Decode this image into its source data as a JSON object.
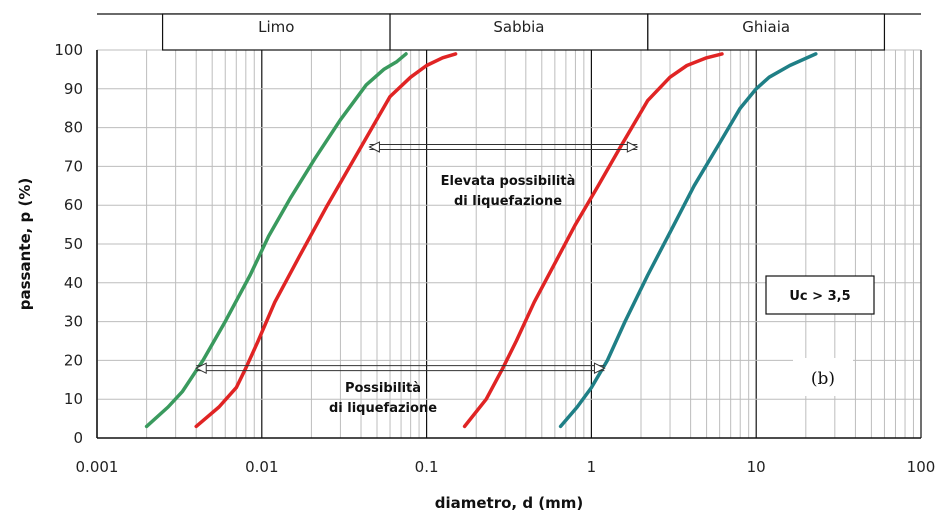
{
  "chart_data": {
    "type": "line",
    "xlabel": "diametro, d (mm)",
    "ylabel": "passante, p (%)",
    "xscale": "log",
    "xlim": [
      0.001,
      100
    ],
    "ylim": [
      0,
      100
    ],
    "xticks": [
      "0.001",
      "0.01",
      "0.1",
      "1",
      "10",
      "100"
    ],
    "yticks": [
      "0",
      "10",
      "20",
      "30",
      "40",
      "50",
      "60",
      "70",
      "80",
      "90",
      "100"
    ],
    "grid": true,
    "soil_bands": [
      {
        "label": "Limo",
        "from": 0.0025,
        "to": 0.06
      },
      {
        "label": "Sabbia",
        "from": 0.06,
        "to": 2.2
      },
      {
        "label": "Ghiaia",
        "from": 2.2,
        "to": 60
      }
    ],
    "series": [
      {
        "color": "#3a9a5e",
        "x": [
          0.002,
          0.0027,
          0.0033,
          0.0044,
          0.006,
          0.0085,
          0.011,
          0.015,
          0.021,
          0.03,
          0.043,
          0.055,
          0.066,
          0.075
        ],
        "y": [
          3,
          8,
          12,
          20,
          30,
          42,
          52,
          62,
          72,
          82,
          91,
          95,
          97,
          99
        ]
      },
      {
        "color": "#e02424",
        "x": [
          0.004,
          0.0055,
          0.007,
          0.008,
          0.0095,
          0.012,
          0.017,
          0.025,
          0.04,
          0.06,
          0.08,
          0.1,
          0.125,
          0.15
        ],
        "y": [
          3,
          8,
          13,
          18,
          25,
          35,
          47,
          60,
          75,
          88,
          93,
          96,
          98,
          99
        ]
      },
      {
        "color": "#e02424",
        "x": [
          0.17,
          0.23,
          0.29,
          0.35,
          0.45,
          0.6,
          0.8,
          1.1,
          1.5,
          2.2,
          3.0,
          3.8,
          5.0,
          6.2
        ],
        "y": [
          3,
          10,
          18,
          25,
          35,
          45,
          55,
          65,
          75,
          87,
          93,
          96,
          98,
          99
        ]
      },
      {
        "color": "#1f7f86",
        "x": [
          0.65,
          0.82,
          1.0,
          1.25,
          1.6,
          2.2,
          3.0,
          4.2,
          6.0,
          8.0,
          10.0,
          12.0,
          16.0,
          23.0
        ],
        "y": [
          3,
          8,
          13,
          20,
          30,
          42,
          53,
          65,
          76,
          85,
          90,
          93,
          96,
          99
        ]
      }
    ],
    "annotations": {
      "upper_arrow": {
        "x1": 0.045,
        "x2": 1.9,
        "y": 75,
        "label_line1": "Elevata possibilità",
        "label_line2": "di liquefazione"
      },
      "lower_arrow": {
        "x1": 0.004,
        "x2": 1.2,
        "y": 18,
        "label_line1": "Possibilità",
        "label_line2": "di liquefazione"
      },
      "uc_box": "Uc > 3,5",
      "panel_label": "(b)"
    }
  }
}
